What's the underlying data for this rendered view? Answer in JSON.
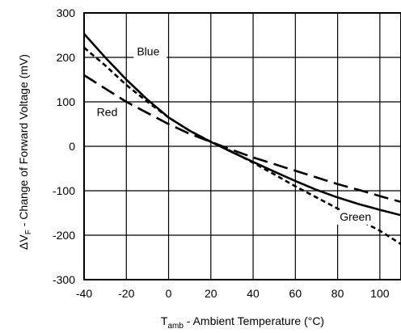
{
  "chart_data": {
    "type": "line",
    "title": "",
    "xlabel": "T",
    "xlabel_sub": "amb",
    "xlabel_rest": " - Ambient Temperature (°C)",
    "ylabel": "ΔV",
    "ylabel_sub": "F",
    "ylabel_rest": " - Change of Forward Voltage (mV)",
    "xlim": [
      -40,
      110
    ],
    "ylim": [
      -300,
      300
    ],
    "xticks": [
      -40,
      -20,
      0,
      20,
      40,
      60,
      80,
      100
    ],
    "yticks": [
      300,
      200,
      100,
      0,
      -100,
      -200,
      -300
    ],
    "grid": true,
    "legend": "none",
    "series": [
      {
        "name": "Blue",
        "style": "solid",
        "x": [
          -40,
          -30,
          -20,
          -10,
          0,
          10,
          20,
          30,
          40,
          50,
          60,
          70,
          80,
          90,
          100,
          110
        ],
        "y": [
          253,
          200,
          150,
          105,
          65,
          35,
          10,
          -13,
          -35,
          -57,
          -78,
          -98,
          -115,
          -130,
          -143,
          -155
        ]
      },
      {
        "name": "Green",
        "style": "short-dash",
        "x": [
          -40,
          -30,
          -20,
          -10,
          0,
          10,
          20,
          30,
          40,
          50,
          60,
          70,
          80,
          90,
          100,
          110
        ],
        "y": [
          222,
          182,
          138,
          100,
          65,
          35,
          10,
          -12,
          -37,
          -63,
          -90,
          -115,
          -140,
          -165,
          -190,
          -220
        ]
      },
      {
        "name": "Red",
        "style": "long-dash",
        "x": [
          -40,
          -30,
          -20,
          -10,
          0,
          10,
          20,
          30,
          40,
          50,
          60,
          70,
          80,
          90,
          100,
          110
        ],
        "y": [
          160,
          130,
          100,
          75,
          50,
          28,
          10,
          -8,
          -25,
          -40,
          -55,
          -70,
          -85,
          -98,
          -112,
          -125
        ]
      }
    ],
    "annotations": [
      {
        "text": "Blue",
        "x": -15,
        "y": 205
      },
      {
        "text": "Red",
        "x": -34,
        "y": 68
      },
      {
        "text": "Green",
        "x": 81,
        "y": -167
      }
    ]
  }
}
